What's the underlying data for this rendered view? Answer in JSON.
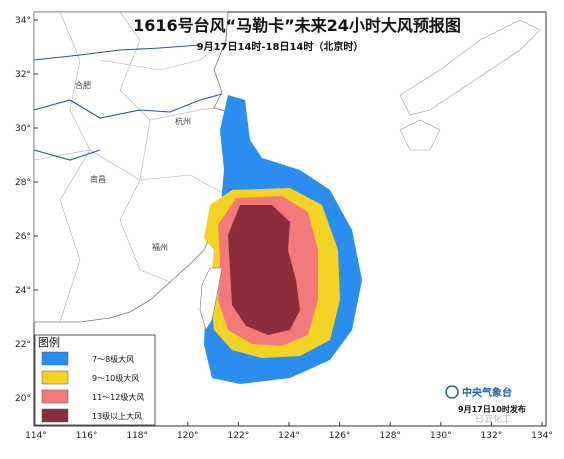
{
  "header": {
    "title": "1616号台风“马勒卡”未来24小时大风预报图",
    "subtitle": "9月17日14时-18日14时（北京时）"
  },
  "map": {
    "lat_labels": [
      "34°",
      "32°",
      "30°",
      "28°",
      "26°",
      "24°",
      "22°",
      "20°"
    ],
    "lon_labels": [
      "114°",
      "116°",
      "118°",
      "120°",
      "122°",
      "124°",
      "126°",
      "128°",
      "130°",
      "132°",
      "134°"
    ],
    "cities": [
      "合肥",
      "杭州",
      "南昌",
      "福州"
    ]
  },
  "legend": {
    "title": "图例",
    "entries": [
      "7～8级大风",
      "9～10级大风",
      "11～12级大风",
      "13级以上大风"
    ]
  },
  "footer": {
    "agency": "中央气象台",
    "issued": "9月17日10时发布",
    "watermark": "日云化工"
  }
}
